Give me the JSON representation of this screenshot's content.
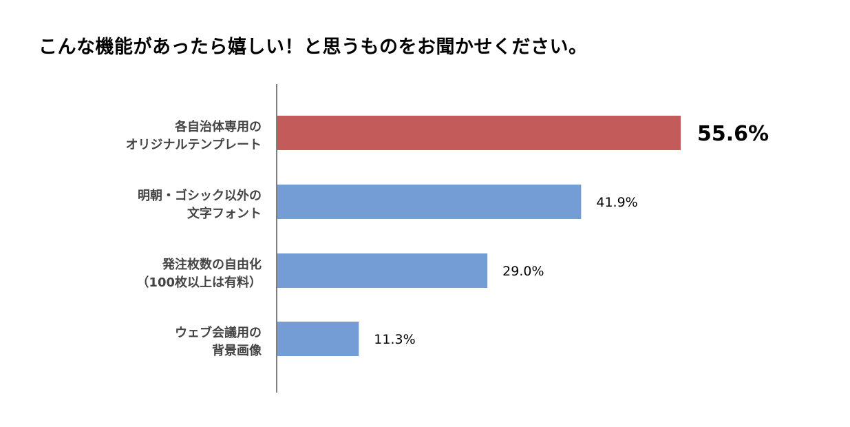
{
  "chart_data": {
    "type": "bar",
    "orientation": "horizontal",
    "title": "こんな機能があったら嬉しい！と思うものをお聞かせください。",
    "categories": [
      [
        "各自治体専用の",
        "オリジナルテンプレート"
      ],
      [
        "明朝・ゴシック以外の",
        "文字フォント"
      ],
      [
        "発注枚数の自由化",
        "（100枚以上は有料）"
      ],
      [
        "ウェブ会議用の",
        "背景画像"
      ]
    ],
    "values": [
      55.6,
      41.9,
      29.0,
      11.3
    ],
    "value_labels": [
      "55.6%",
      "41.9%",
      "29.0%",
      "11.3%"
    ],
    "highlight_index": 0,
    "colors": {
      "highlight": "#c25b5a",
      "default": "#739dd4",
      "axis": "#7f7f7f"
    },
    "xlim": [
      0,
      100
    ],
    "grid": false,
    "legend": "none"
  }
}
